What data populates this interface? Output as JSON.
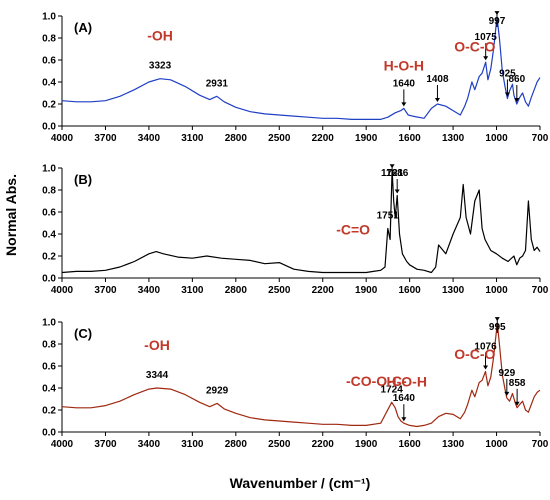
{
  "chart_data": {
    "type": "line",
    "ylabel": "Normal Abs.",
    "xlabel": "Wavenumber / (cm⁻¹)",
    "shared_x_ticks": [
      "4000",
      "3700",
      "3400",
      "3100",
      "2800",
      "2500",
      "2200",
      "1900",
      "1600",
      "1300",
      "1000",
      "700"
    ],
    "panels": [
      {
        "label": "(A)",
        "color": "#1f3fc4",
        "xlim": [
          4000,
          700
        ],
        "ylim": [
          0,
          1.0
        ],
        "y_ticks": [
          "0.0",
          "0.2",
          "0.4",
          "0.6",
          "0.8",
          "1.0"
        ],
        "series": [
          {
            "x": [
              4000,
              3900,
              3800,
              3700,
              3600,
              3500,
              3400,
              3323,
              3250,
              3150,
              3050,
              2980,
              2931,
              2880,
              2800,
              2700,
              2600,
              2500,
              2400,
              2300,
              2200,
              2100,
              2000,
              1900,
              1800,
              1750,
              1700,
              1660,
              1640,
              1610,
              1580,
              1500,
              1450,
              1408,
              1350,
              1300,
              1250,
              1220,
              1200,
              1170,
              1150,
              1120,
              1100,
              1075,
              1060,
              1040,
              1020,
              997,
              980,
              960,
              940,
              925,
              910,
              890,
              880,
              860,
              840,
              820,
              800,
              780,
              760,
              740,
              720,
              700
            ],
            "y": [
              0.23,
              0.22,
              0.22,
              0.23,
              0.27,
              0.33,
              0.4,
              0.43,
              0.42,
              0.36,
              0.28,
              0.24,
              0.27,
              0.22,
              0.17,
              0.13,
              0.11,
              0.1,
              0.09,
              0.08,
              0.07,
              0.07,
              0.06,
              0.06,
              0.06,
              0.08,
              0.12,
              0.14,
              0.16,
              0.1,
              0.09,
              0.07,
              0.16,
              0.2,
              0.18,
              0.14,
              0.1,
              0.18,
              0.25,
              0.4,
              0.33,
              0.45,
              0.48,
              0.58,
              0.42,
              0.52,
              0.7,
              0.99,
              0.8,
              0.5,
              0.35,
              0.25,
              0.32,
              0.38,
              0.28,
              0.2,
              0.26,
              0.3,
              0.22,
              0.18,
              0.26,
              0.33,
              0.4,
              0.44
            ]
          }
        ],
        "annotations": [
          {
            "text": "3323",
            "x": 3323,
            "arrow": false
          },
          {
            "text": "2931",
            "x": 2931,
            "arrow": false
          },
          {
            "text": "1640",
            "x": 1640,
            "arrow": true
          },
          {
            "text": "1408",
            "x": 1408,
            "arrow": true
          },
          {
            "text": "1075",
            "x": 1075,
            "arrow": true
          },
          {
            "text": "997",
            "x": 997,
            "arrow": true
          },
          {
            "text": "925",
            "x": 925,
            "arrow": true
          },
          {
            "text": "860",
            "x": 860,
            "arrow": true
          }
        ],
        "group_labels": [
          {
            "text": "-OH",
            "x": 3323
          },
          {
            "text": "H-O-H",
            "x": 1640
          },
          {
            "text": "O-C-O",
            "x": 1150
          }
        ]
      },
      {
        "label": "(B)",
        "color": "#000000",
        "xlim": [
          4000,
          700
        ],
        "ylim": [
          0,
          1.0
        ],
        "y_ticks": [
          "0.0",
          "0.2",
          "0.4",
          "0.6",
          "0.8",
          "1.0"
        ],
        "series": [
          {
            "x": [
              4000,
              3900,
              3800,
              3700,
              3600,
              3500,
              3400,
              3350,
              3300,
              3200,
              3100,
              3000,
              2900,
              2800,
              2700,
              2600,
              2500,
              2400,
              2300,
              2200,
              2100,
              2000,
              1900,
              1850,
              1800,
              1770,
              1751,
              1735,
              1721,
              1710,
              1700,
              1686,
              1670,
              1650,
              1620,
              1600,
              1550,
              1500,
              1450,
              1420,
              1400,
              1350,
              1300,
              1250,
              1230,
              1210,
              1180,
              1150,
              1120,
              1100,
              1080,
              1060,
              1040,
              1000,
              960,
              920,
              880,
              860,
              840,
              820,
              800,
              780,
              760,
              740,
              720,
              700
            ],
            "y": [
              0.05,
              0.06,
              0.06,
              0.07,
              0.1,
              0.15,
              0.22,
              0.24,
              0.22,
              0.19,
              0.18,
              0.2,
              0.18,
              0.17,
              0.16,
              0.13,
              0.14,
              0.08,
              0.06,
              0.05,
              0.05,
              0.05,
              0.05,
              0.06,
              0.07,
              0.1,
              0.45,
              0.35,
              0.98,
              0.7,
              0.55,
              0.75,
              0.4,
              0.22,
              0.15,
              0.12,
              0.08,
              0.07,
              0.05,
              0.1,
              0.3,
              0.22,
              0.4,
              0.55,
              0.85,
              0.55,
              0.4,
              0.7,
              0.8,
              0.45,
              0.35,
              0.3,
              0.25,
              0.22,
              0.18,
              0.15,
              0.2,
              0.12,
              0.18,
              0.2,
              0.25,
              0.7,
              0.35,
              0.25,
              0.28,
              0.24
            ]
          }
        ],
        "annotations": [
          {
            "text": "1721",
            "x": 1721,
            "arrow": true
          },
          {
            "text": "1751",
            "x": 1751,
            "arrow": false
          },
          {
            "text": "1686",
            "x": 1686,
            "arrow": true
          }
        ],
        "group_labels": [
          {
            "text": "-C=O",
            "x": 1990
          }
        ]
      },
      {
        "label": "(C)",
        "color": "#a02810",
        "xlim": [
          4000,
          700
        ],
        "ylim": [
          0,
          1.0
        ],
        "y_ticks": [
          "0.0",
          "0.2",
          "0.4",
          "0.6",
          "0.8",
          "1.0"
        ],
        "series": [
          {
            "x": [
              4000,
              3900,
              3800,
              3700,
              3600,
              3500,
              3400,
              3344,
              3250,
              3150,
              3050,
              2980,
              2929,
              2880,
              2800,
              2700,
              2600,
              2500,
              2400,
              2300,
              2200,
              2100,
              2000,
              1900,
              1800,
              1760,
              1724,
              1700,
              1680,
              1660,
              1640,
              1600,
              1550,
              1500,
              1450,
              1400,
              1350,
              1300,
              1250,
              1220,
              1200,
              1170,
              1150,
              1120,
              1100,
              1076,
              1060,
              1040,
              1020,
              995,
              980,
              960,
              940,
              929,
              910,
              890,
              870,
              858,
              840,
              820,
              800,
              780,
              760,
              740,
              720,
              700
            ],
            "y": [
              0.23,
              0.22,
              0.22,
              0.24,
              0.28,
              0.34,
              0.39,
              0.4,
              0.39,
              0.34,
              0.27,
              0.23,
              0.26,
              0.21,
              0.17,
              0.13,
              0.11,
              0.1,
              0.09,
              0.08,
              0.07,
              0.07,
              0.06,
              0.06,
              0.08,
              0.18,
              0.27,
              0.22,
              0.14,
              0.1,
              0.08,
              0.06,
              0.05,
              0.06,
              0.08,
              0.14,
              0.17,
              0.16,
              0.12,
              0.18,
              0.25,
              0.38,
              0.32,
              0.45,
              0.47,
              0.55,
              0.42,
              0.5,
              0.68,
              0.99,
              0.8,
              0.52,
              0.38,
              0.31,
              0.28,
              0.35,
              0.26,
              0.22,
              0.25,
              0.28,
              0.2,
              0.18,
              0.25,
              0.32,
              0.36,
              0.38
            ]
          }
        ],
        "annotations": [
          {
            "text": "3344",
            "x": 3344,
            "arrow": false
          },
          {
            "text": "2929",
            "x": 2929,
            "arrow": false
          },
          {
            "text": "1724",
            "x": 1724,
            "arrow": false
          },
          {
            "text": "1640",
            "x": 1640,
            "arrow": true
          },
          {
            "text": "1076",
            "x": 1076,
            "arrow": true
          },
          {
            "text": "995",
            "x": 995,
            "arrow": true
          },
          {
            "text": "929",
            "x": 929,
            "arrow": true
          },
          {
            "text": "858",
            "x": 858,
            "arrow": true
          }
        ],
        "group_labels": [
          {
            "text": "-OH",
            "x": 3344
          },
          {
            "text": "-CO-O-C-",
            "x": 1830
          },
          {
            "text": "H-O-H",
            "x": 1620
          },
          {
            "text": "O-C-O",
            "x": 1150
          }
        ]
      }
    ]
  }
}
